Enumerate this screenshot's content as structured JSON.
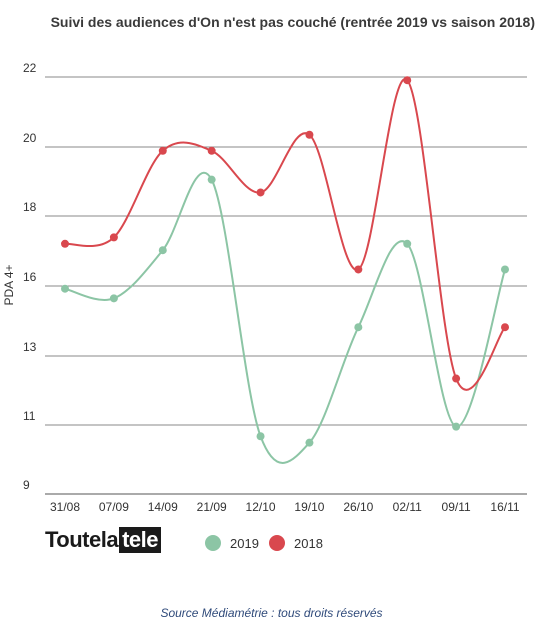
{
  "chart_data": {
    "type": "line",
    "title": "Suivi des audiences d'On n'est pas couché (rentrée 2019 vs saison 2018)",
    "ylabel": "PDA 4+",
    "xlabel": "",
    "categories": [
      "31/08",
      "07/09",
      "14/09",
      "21/09",
      "12/10",
      "19/10",
      "26/10",
      "02/11",
      "09/11",
      "16/11"
    ],
    "y_tick_labels": [
      "9",
      "11",
      "13",
      "16",
      "18",
      "20",
      "22"
    ],
    "ylim": [
      9,
      22
    ],
    "grid": true,
    "legend_position": "bottom",
    "series": [
      {
        "name": "2019",
        "color": "#8cc5a5",
        "values": [
          15.4,
          15.1,
          16.6,
          18.8,
          10.8,
          10.6,
          14.2,
          16.8,
          11.1,
          16.0
        ]
      },
      {
        "name": "2018",
        "color": "#d9484e",
        "values": [
          16.8,
          17.0,
          19.7,
          19.7,
          18.4,
          20.2,
          16.0,
          21.9,
          12.6,
          14.2
        ]
      }
    ]
  },
  "branding": {
    "logo_part1": "Toutela",
    "logo_part2": "tele"
  },
  "footer": {
    "source": "Source Médiamétrie : tous droits réservés"
  }
}
